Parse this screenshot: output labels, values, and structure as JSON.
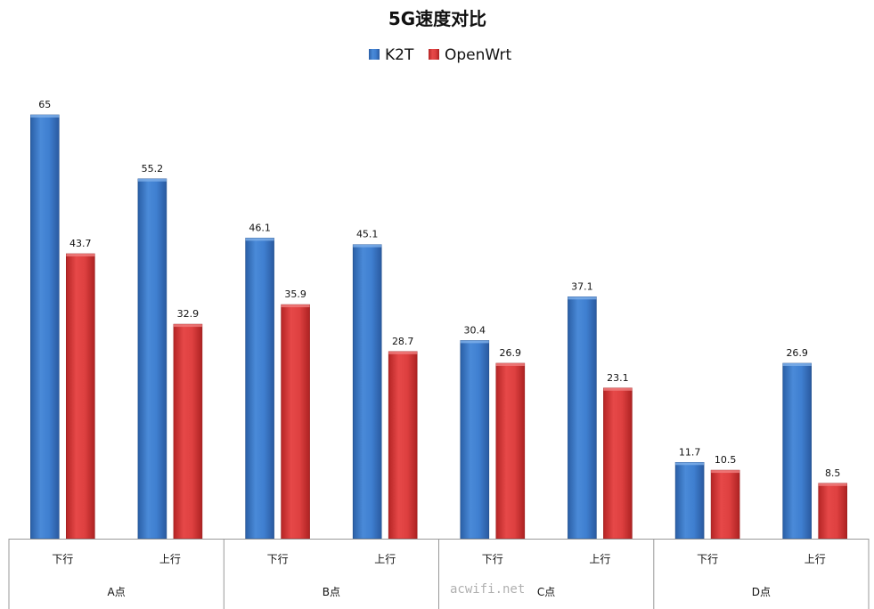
{
  "chart_data": {
    "type": "bar",
    "title": "5G速度对比",
    "groups": [
      "A点",
      "B点",
      "C点",
      "D点"
    ],
    "categories": [
      "下行",
      "上行",
      "下行",
      "上行",
      "下行",
      "上行",
      "下行",
      "上行"
    ],
    "series": [
      {
        "name": "K2T",
        "values": [
          65,
          55.2,
          46.1,
          45.1,
          30.4,
          37.1,
          11.7,
          26.9
        ]
      },
      {
        "name": "OpenWrt",
        "values": [
          43.7,
          32.9,
          35.9,
          28.7,
          26.9,
          23.1,
          10.5,
          8.5
        ]
      }
    ],
    "ylim": [
      0,
      65
    ],
    "grid": false,
    "legend": "top",
    "colors": {
      "K2T": "#3a78c9",
      "OpenWrt": "#d93a3a"
    }
  },
  "watermark": "acwifi.net"
}
